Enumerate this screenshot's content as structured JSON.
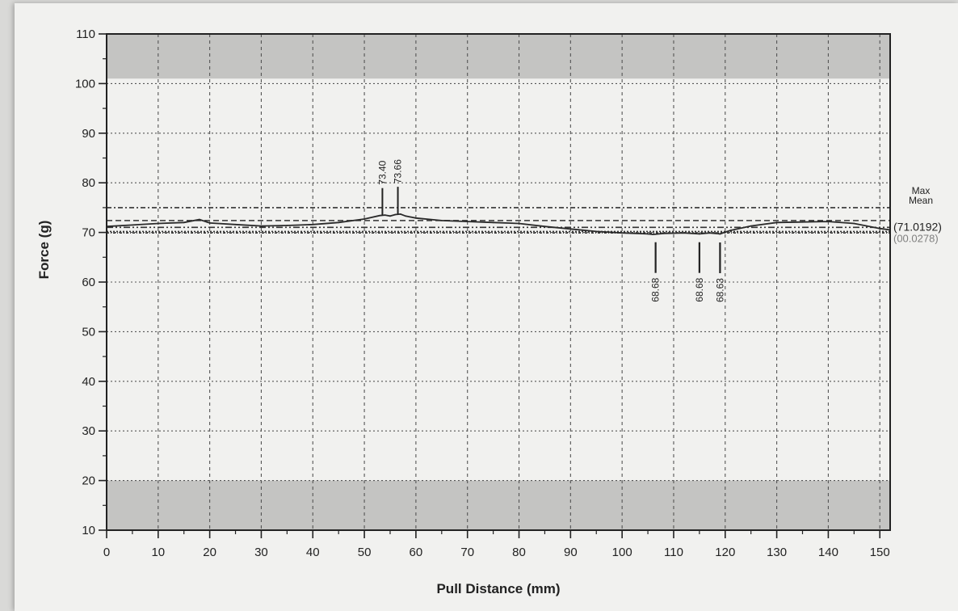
{
  "chart_data": {
    "type": "line",
    "title": "",
    "xlabel": "Pull Distance (mm)",
    "ylabel": "Force (g)",
    "xlim": [
      0,
      152
    ],
    "ylim": [
      10,
      110
    ],
    "x_ticks": [
      "0",
      "10",
      "20",
      "30",
      "40",
      "50",
      "60",
      "70",
      "80",
      "90",
      "100",
      "110",
      "120",
      "130",
      "140",
      "150"
    ],
    "y_ticks": [
      "10",
      "20",
      "30",
      "40",
      "50",
      "60",
      "70",
      "80",
      "90",
      "100",
      "110"
    ],
    "grid": true,
    "shaded_bands": [
      {
        "from": 10,
        "to": 20
      },
      {
        "from": 101,
        "to": 110
      }
    ],
    "series": [
      {
        "x": [
          0,
          5,
          10,
          15,
          18,
          20,
          25,
          30,
          35,
          40,
          45,
          50,
          53,
          54,
          55,
          56,
          57,
          58,
          60,
          65,
          70,
          75,
          80,
          85,
          90,
          95,
          100,
          105,
          106,
          108,
          112,
          115,
          117,
          119,
          121,
          125,
          130,
          135,
          140,
          145,
          150,
          152
        ],
        "y": [
          71.2,
          71.5,
          71.8,
          72.0,
          72.6,
          71.9,
          71.6,
          71.3,
          71.4,
          71.6,
          72.0,
          72.7,
          73.4,
          73.5,
          73.3,
          73.6,
          73.7,
          73.3,
          72.9,
          72.4,
          72.2,
          72.0,
          71.8,
          71.2,
          70.7,
          70.2,
          69.9,
          69.7,
          69.6,
          69.8,
          69.9,
          69.7,
          69.9,
          69.7,
          70.4,
          71.3,
          72.0,
          72.1,
          72.2,
          71.8,
          70.8,
          70.5
        ]
      }
    ],
    "reference_lines": [
      {
        "name": "Max",
        "value": 75.0
      },
      {
        "name": "Mean",
        "value": 71.0192,
        "label": "(71.0192)"
      },
      {
        "value": 72.4
      },
      {
        "value": 70.2
      },
      {
        "value": 69.9
      }
    ],
    "annotations": [
      {
        "x": 53.5,
        "y": 73.4,
        "label": "73.40"
      },
      {
        "x": 56.5,
        "y": 73.66,
        "label": "73.66"
      },
      {
        "x": 106.5,
        "y": 68.68,
        "label": "68.68"
      },
      {
        "x": 115,
        "y": 68.68,
        "label": "68.68"
      },
      {
        "x": 119,
        "y": 68.63,
        "label": "68.63"
      }
    ],
    "side_labels": {
      "max": "Max",
      "mean": "Mean",
      "mean_value": "(71.0192)",
      "partial": "(00.0278)"
    }
  }
}
